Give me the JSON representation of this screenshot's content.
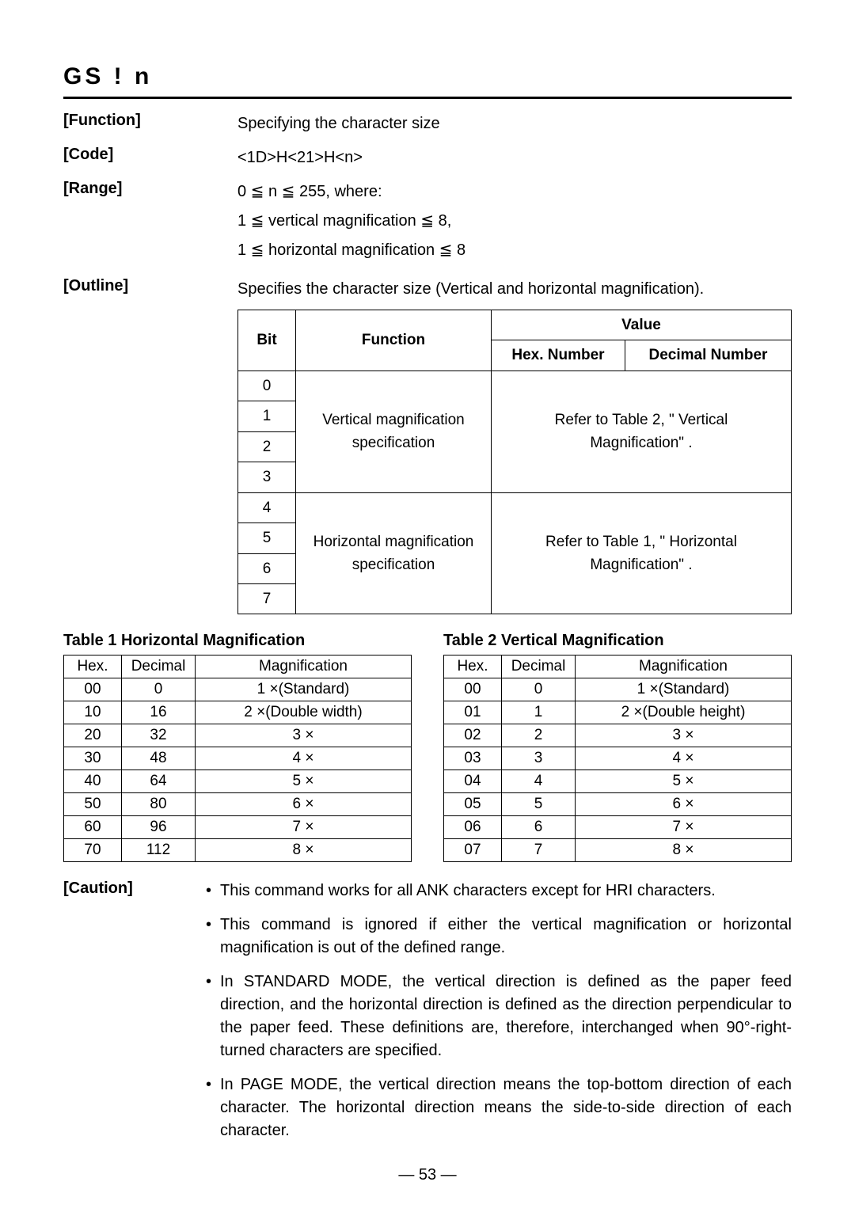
{
  "title": "GS  !   n",
  "sections": {
    "function": {
      "label": "[Function]",
      "text": "Specifying the character size"
    },
    "code": {
      "label": "[Code]",
      "text": "<1D>H<21>H<n>"
    },
    "range": {
      "label": "[Range]",
      "lines": [
        "0 ≦ n ≦ 255, where:",
        "1 ≦ vertical magnification ≦ 8,",
        "1 ≦ horizontal magnification ≦ 8"
      ]
    },
    "outline": {
      "label": "[Outline]",
      "text": "Specifies the character size (Vertical and horizontal magnification).",
      "bit_table": {
        "headers": {
          "bit": "Bit",
          "function": "Function",
          "value": "Value",
          "hex": "Hex. Number",
          "dec": "Decimal Number"
        },
        "groups": [
          {
            "bits": [
              "0",
              "1",
              "2",
              "3"
            ],
            "function_lines": [
              "Vertical magnification",
              "specification"
            ],
            "value_lines": [
              "Refer to Table 2, \" Vertical",
              "Magnification\" ."
            ]
          },
          {
            "bits": [
              "4",
              "5",
              "6",
              "7"
            ],
            "function_lines": [
              "Horizontal magnification",
              "specification"
            ],
            "value_lines": [
              "Refer to Table 1, \" Horizontal",
              "Magnification\" ."
            ]
          }
        ]
      }
    }
  },
  "table1": {
    "title": "Table 1 Horizontal Magnification",
    "columns": [
      "Hex.",
      "Decimal",
      "Magnification"
    ],
    "rows": [
      [
        "00",
        "0",
        "1 ×(Standard)"
      ],
      [
        "10",
        "16",
        "2 ×(Double width)"
      ],
      [
        "20",
        "32",
        "3 ×"
      ],
      [
        "30",
        "48",
        "4 ×"
      ],
      [
        "40",
        "64",
        "5 ×"
      ],
      [
        "50",
        "80",
        "6 ×"
      ],
      [
        "60",
        "96",
        "7 ×"
      ],
      [
        "70",
        "112",
        "8 ×"
      ]
    ]
  },
  "table2": {
    "title": "Table 2 Vertical Magnification",
    "columns": [
      "Hex.",
      "Decimal",
      "Magnification"
    ],
    "rows": [
      [
        "00",
        "0",
        "1 ×(Standard)"
      ],
      [
        "01",
        "1",
        "2 ×(Double height)"
      ],
      [
        "02",
        "2",
        "3 ×"
      ],
      [
        "03",
        "3",
        "4 ×"
      ],
      [
        "04",
        "4",
        "5 ×"
      ],
      [
        "05",
        "5",
        "6 ×"
      ],
      [
        "06",
        "6",
        "7 ×"
      ],
      [
        "07",
        "7",
        "8 ×"
      ]
    ]
  },
  "caution": {
    "label": "[Caution]",
    "items": [
      "This command works for all ANK characters except for HRI characters.",
      "This command is ignored if either the vertical magnification or horizontal magnification is out of the defined range.",
      "In STANDARD MODE, the vertical direction is defined as the paper feed direction, and the horizontal direction is defined as the direction perpendicular to the paper feed. These definitions are, therefore, interchanged when 90°-right-turned characters are specified.",
      "In PAGE MODE, the vertical direction means the top-bottom direction of each character. The horizontal direction means the side-to-side direction of each character."
    ]
  },
  "page_number": "— 53 —"
}
